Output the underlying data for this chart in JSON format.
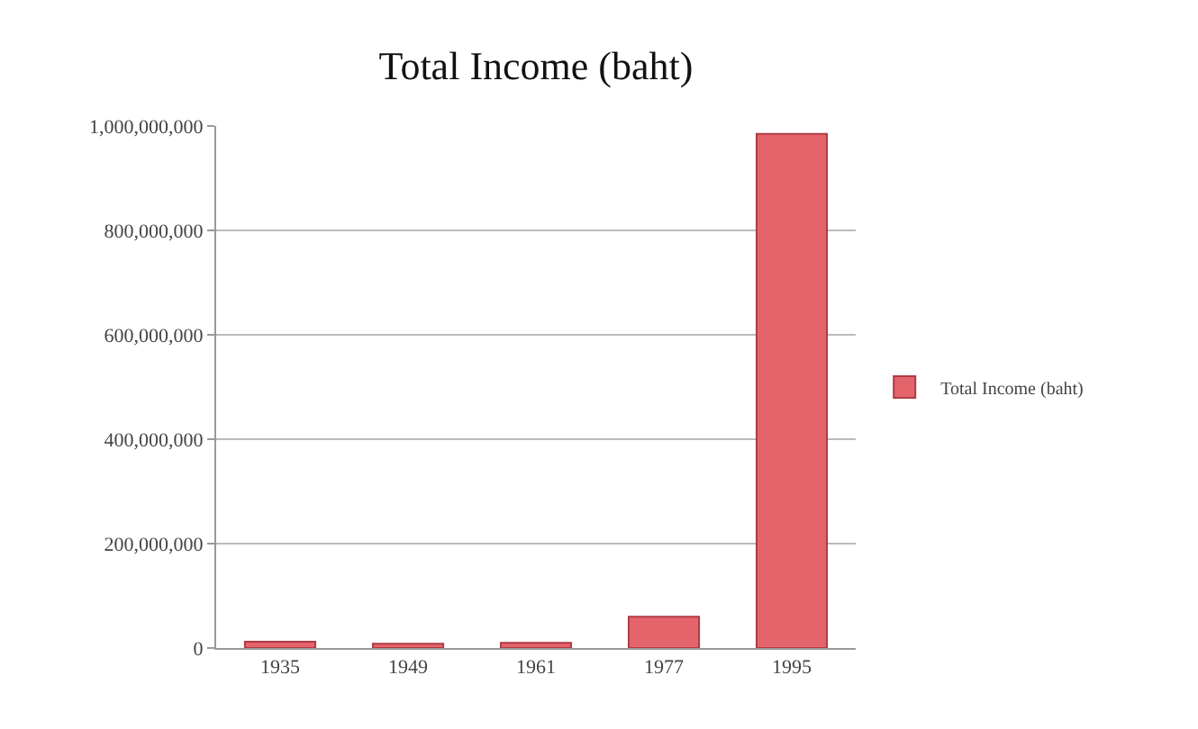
{
  "chart_data": {
    "type": "bar",
    "title": "Total Income (baht)",
    "categories": [
      "1935",
      "1949",
      "1961",
      "1977",
      "1995"
    ],
    "series": [
      {
        "name": "Total Income (baht)",
        "color": "#e4646c",
        "values": [
          12000000,
          8000000,
          10000000,
          60000000,
          985000000
        ]
      }
    ],
    "ylim": [
      0,
      1000000000
    ],
    "yticks": [
      {
        "value": 0,
        "label": "0"
      },
      {
        "value": 200000000,
        "label": "200,000,000"
      },
      {
        "value": 400000000,
        "label": "400,000,000"
      },
      {
        "value": 600000000,
        "label": "600,000,000"
      },
      {
        "value": 800000000,
        "label": "800,000,000"
      },
      {
        "value": 1000000000,
        "label": "1,000,000,000"
      }
    ],
    "grid": "y",
    "legend": "right"
  }
}
